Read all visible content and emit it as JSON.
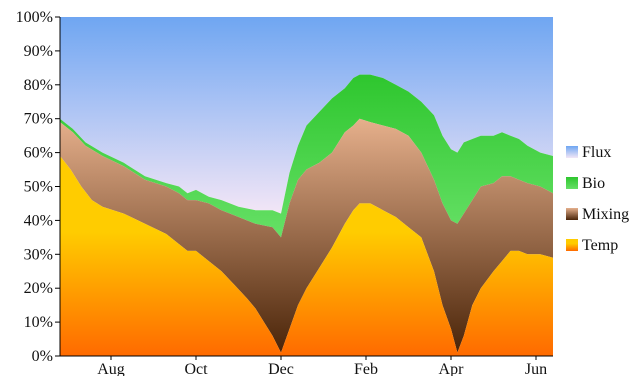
{
  "chart_data": {
    "type": "area",
    "stacked": true,
    "normalized": true,
    "ylim": [
      0,
      100
    ],
    "yticks": [
      "0%",
      "10%",
      "20%",
      "30%",
      "40%",
      "50%",
      "60%",
      "70%",
      "80%",
      "90%",
      "100%"
    ],
    "x_tick_labels": [
      "Aug",
      "Oct",
      "Dec",
      "Feb",
      "Apr",
      "Jun"
    ],
    "x_tick_positions": [
      1.2,
      3.2,
      5.2,
      7.2,
      9.2,
      11.2
    ],
    "xlim": [
      0,
      11.6
    ],
    "legend_position": "right",
    "legend": [
      "Flux",
      "Bio",
      "Mixing",
      "Temp"
    ],
    "series": [
      {
        "name": "Temp",
        "colors": [
          "#f96406",
          "#ffcc00",
          "#ff6a00"
        ],
        "points": [
          [
            0,
            59
          ],
          [
            0.25,
            55
          ],
          [
            0.5,
            50
          ],
          [
            0.75,
            46
          ],
          [
            1,
            44
          ],
          [
            1.5,
            42
          ],
          [
            2,
            39
          ],
          [
            2.5,
            36
          ],
          [
            2.8,
            33
          ],
          [
            3,
            31
          ],
          [
            3.2,
            31
          ],
          [
            3.5,
            28
          ],
          [
            3.8,
            25
          ],
          [
            4.1,
            21
          ],
          [
            4.4,
            17
          ],
          [
            4.6,
            14
          ],
          [
            4.8,
            10
          ],
          [
            5,
            6
          ],
          [
            5.2,
            1
          ],
          [
            5.4,
            8
          ],
          [
            5.6,
            15
          ],
          [
            5.8,
            20
          ],
          [
            6.1,
            26
          ],
          [
            6.4,
            32
          ],
          [
            6.7,
            39
          ],
          [
            6.9,
            43
          ],
          [
            7.05,
            45
          ],
          [
            7.3,
            45
          ],
          [
            7.6,
            43
          ],
          [
            7.9,
            41
          ],
          [
            8.2,
            38
          ],
          [
            8.5,
            35
          ],
          [
            8.8,
            25
          ],
          [
            9.0,
            15
          ],
          [
            9.2,
            8
          ],
          [
            9.35,
            1
          ],
          [
            9.5,
            6
          ],
          [
            9.7,
            15
          ],
          [
            9.9,
            20
          ],
          [
            10.2,
            25
          ],
          [
            10.4,
            28
          ],
          [
            10.6,
            31
          ],
          [
            10.8,
            31
          ],
          [
            11.0,
            30
          ],
          [
            11.3,
            30
          ],
          [
            11.6,
            29
          ]
        ]
      },
      {
        "name": "Mixing",
        "colors": [
          "#e6b08c",
          "#4a2408"
        ],
        "points": [
          [
            0,
            69
          ],
          [
            0.3,
            66
          ],
          [
            0.6,
            62
          ],
          [
            1,
            59
          ],
          [
            1.5,
            56
          ],
          [
            2,
            52
          ],
          [
            2.5,
            50
          ],
          [
            2.8,
            48
          ],
          [
            3,
            46
          ],
          [
            3.2,
            46
          ],
          [
            3.5,
            45
          ],
          [
            3.8,
            43
          ],
          [
            4.2,
            41
          ],
          [
            4.6,
            39
          ],
          [
            5,
            38
          ],
          [
            5.2,
            35
          ],
          [
            5.4,
            45
          ],
          [
            5.6,
            52
          ],
          [
            5.8,
            55
          ],
          [
            6.1,
            57
          ],
          [
            6.4,
            60
          ],
          [
            6.7,
            66
          ],
          [
            6.9,
            68
          ],
          [
            7.05,
            70
          ],
          [
            7.3,
            69
          ],
          [
            7.6,
            68
          ],
          [
            7.9,
            67
          ],
          [
            8.2,
            65
          ],
          [
            8.5,
            60
          ],
          [
            8.8,
            52
          ],
          [
            9.0,
            45
          ],
          [
            9.2,
            40
          ],
          [
            9.35,
            39
          ],
          [
            9.5,
            42
          ],
          [
            9.7,
            46
          ],
          [
            9.9,
            50
          ],
          [
            10.2,
            51
          ],
          [
            10.4,
            53
          ],
          [
            10.6,
            53
          ],
          [
            10.8,
            52
          ],
          [
            11.0,
            51
          ],
          [
            11.3,
            50
          ],
          [
            11.6,
            48
          ]
        ]
      },
      {
        "name": "Bio",
        "colors": [
          "#2ec62e",
          "#66e066"
        ],
        "points": [
          [
            0,
            70
          ],
          [
            0.3,
            67
          ],
          [
            0.6,
            63
          ],
          [
            1,
            60
          ],
          [
            1.5,
            57
          ],
          [
            2,
            53
          ],
          [
            2.5,
            51
          ],
          [
            2.8,
            50
          ],
          [
            3,
            48
          ],
          [
            3.2,
            49
          ],
          [
            3.5,
            47
          ],
          [
            3.8,
            46
          ],
          [
            4.2,
            44
          ],
          [
            4.6,
            43
          ],
          [
            5,
            43
          ],
          [
            5.2,
            42
          ],
          [
            5.4,
            54
          ],
          [
            5.6,
            62
          ],
          [
            5.8,
            68
          ],
          [
            6.1,
            72
          ],
          [
            6.4,
            76
          ],
          [
            6.7,
            79
          ],
          [
            6.9,
            82
          ],
          [
            7.05,
            83
          ],
          [
            7.3,
            83
          ],
          [
            7.6,
            82
          ],
          [
            7.9,
            80
          ],
          [
            8.2,
            78
          ],
          [
            8.5,
            75
          ],
          [
            8.8,
            71
          ],
          [
            9.0,
            65
          ],
          [
            9.2,
            61
          ],
          [
            9.35,
            60
          ],
          [
            9.5,
            63
          ],
          [
            9.7,
            64
          ],
          [
            9.9,
            65
          ],
          [
            10.2,
            65
          ],
          [
            10.4,
            66
          ],
          [
            10.6,
            65
          ],
          [
            10.8,
            64
          ],
          [
            11.0,
            62
          ],
          [
            11.3,
            60
          ],
          [
            11.6,
            59
          ]
        ]
      },
      {
        "name": "Flux",
        "colors": [
          "#f3e6f6",
          "#6fa6f2"
        ],
        "points": [
          [
            0,
            100
          ],
          [
            11.6,
            100
          ]
        ]
      }
    ]
  }
}
